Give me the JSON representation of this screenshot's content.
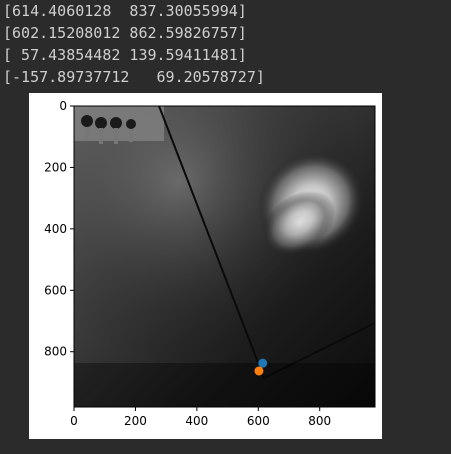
{
  "output_lines": [
    "[614.4060128  837.30055994]",
    "[602.15208012 862.59826757]",
    "[ 57.43854482 139.59411481]",
    "[-157.89737712   69.20578727]"
  ],
  "chart_data": {
    "type": "scatter",
    "background": "grayscale-xray-image",
    "xlim": [
      0,
      980
    ],
    "ylim": [
      980,
      0
    ],
    "x_ticks": [
      0,
      200,
      400,
      600,
      800
    ],
    "y_ticks": [
      0,
      200,
      400,
      600,
      800
    ],
    "x_tick_labels": [
      "0",
      "200",
      "400",
      "600",
      "800"
    ],
    "y_tick_labels": [
      "0",
      "200",
      "400",
      "600",
      "800"
    ],
    "grid": false,
    "points": [
      {
        "x": 614.4060128,
        "y": 837.30055994,
        "color": "#1f77b4"
      },
      {
        "x": 602.15208012,
        "y": 862.59826757,
        "color": "#ff7f0e"
      }
    ]
  }
}
